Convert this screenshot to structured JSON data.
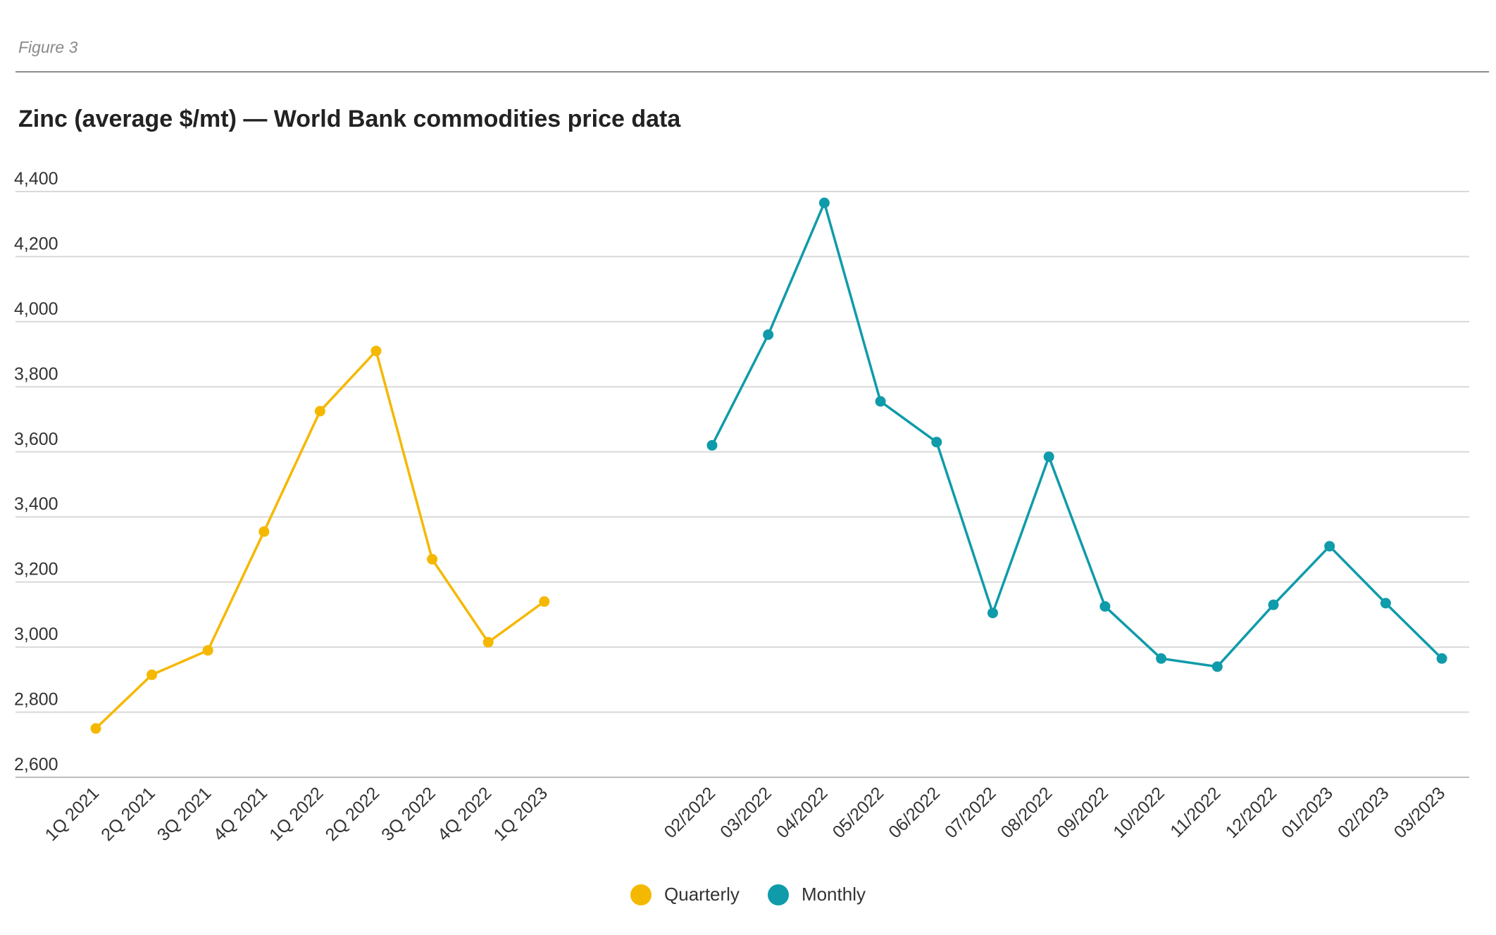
{
  "figure_label": "Figure 3",
  "chart_data": {
    "type": "line",
    "title": "Zinc (average $/mt) — World Bank commodities price data",
    "xlabel": "",
    "ylabel": "",
    "ylim": [
      2600,
      4400
    ],
    "yticks": [
      2600,
      2800,
      3000,
      3200,
      3400,
      3600,
      3800,
      4000,
      4200,
      4400
    ],
    "ytick_labels": [
      "2,600",
      "2,800",
      "3,000",
      "3,200",
      "3,400",
      "3,600",
      "3,800",
      "4,000",
      "4,200",
      "4,400"
    ],
    "grid": true,
    "legend": "bottom-center",
    "series": [
      {
        "name": "Quarterly",
        "color": "#F5B800",
        "categories": [
          "1Q 2021",
          "2Q 2021",
          "3Q 2021",
          "4Q 2021",
          "1Q 2022",
          "2Q 2022",
          "3Q 2022",
          "4Q 2022",
          "1Q 2023"
        ],
        "values": [
          2750,
          2915,
          2990,
          3355,
          3725,
          3910,
          3270,
          3015,
          3140
        ]
      },
      {
        "name": "Monthly",
        "color": "#0F9BAA",
        "categories": [
          "02/2022",
          "03/2022",
          "04/2022",
          "05/2022",
          "06/2022",
          "07/2022",
          "08/2022",
          "09/2022",
          "10/2022",
          "11/2022",
          "12/2022",
          "01/2023",
          "02/2023",
          "03/2023"
        ],
        "values": [
          3620,
          3960,
          4365,
          3755,
          3630,
          3105,
          3585,
          3125,
          2965,
          2940,
          3130,
          3310,
          3135,
          2965
        ]
      }
    ]
  }
}
